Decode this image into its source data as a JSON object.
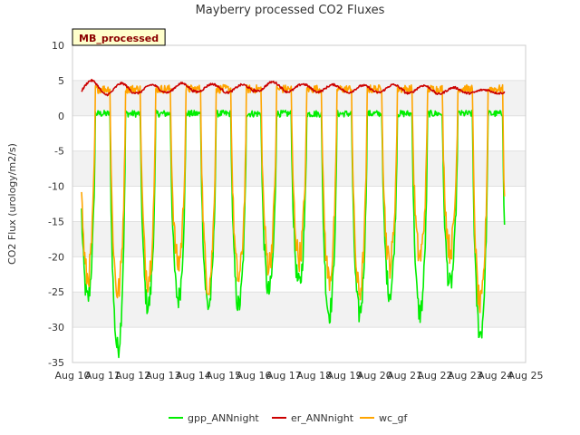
{
  "chart_data": {
    "type": "line",
    "title": "Mayberry processed CO2 Fluxes",
    "xlabel": "",
    "ylabel": "CO2 Flux (urology/m2/s)",
    "badge": "MB_processed",
    "xlim": [
      10,
      25
    ],
    "ylim": [
      -35,
      10
    ],
    "x_ticks": [
      "Aug 10",
      "Aug 11",
      "Aug 12",
      "Aug 13",
      "Aug 14",
      "Aug 15",
      "Aug 16",
      "Aug 17",
      "Aug 18",
      "Aug 19",
      "Aug 20",
      "Aug 21",
      "Aug 22",
      "Aug 23",
      "Aug 24",
      "Aug 25"
    ],
    "y_ticks": [
      "10",
      "5",
      "0",
      "-5",
      "-10",
      "-15",
      "-20",
      "-25",
      "-30",
      "-35"
    ],
    "y_tick_values": [
      10,
      5,
      0,
      -5,
      -10,
      -15,
      -20,
      -25,
      -30,
      -35
    ],
    "grid": true,
    "legend_position": "bottom",
    "data_start_day": 10.3,
    "data_end_day": 24.3,
    "series": [
      {
        "name": "gpp_ANNnight",
        "color": "#00ee00",
        "daily_min": [
          -26,
          -33,
          -27,
          -26,
          -27,
          -27,
          -25,
          -24,
          -28,
          -28,
          -25,
          -28,
          -24,
          -31
        ],
        "night_level": 0.3
      },
      {
        "name": "er_ANNnight",
        "color": "#cc0000",
        "daily_min": [
          3.0,
          3.0,
          3.2,
          3.3,
          3.4,
          3.3,
          3.5,
          3.4,
          3.4,
          3.3,
          3.3,
          3.2,
          3.1,
          3.2
        ],
        "daily_max": [
          5.0,
          4.6,
          4.4,
          4.6,
          4.5,
          4.4,
          4.8,
          4.5,
          4.4,
          4.3,
          4.4,
          4.3,
          4.0,
          3.7
        ]
      },
      {
        "name": "wc_gf",
        "color": "#ffa500",
        "daily_min": [
          -23,
          -25,
          -23,
          -21,
          -24,
          -23,
          -21,
          -20,
          -23,
          -25,
          -21,
          -20,
          -19,
          -27
        ],
        "night_level": 3.8
      }
    ]
  }
}
